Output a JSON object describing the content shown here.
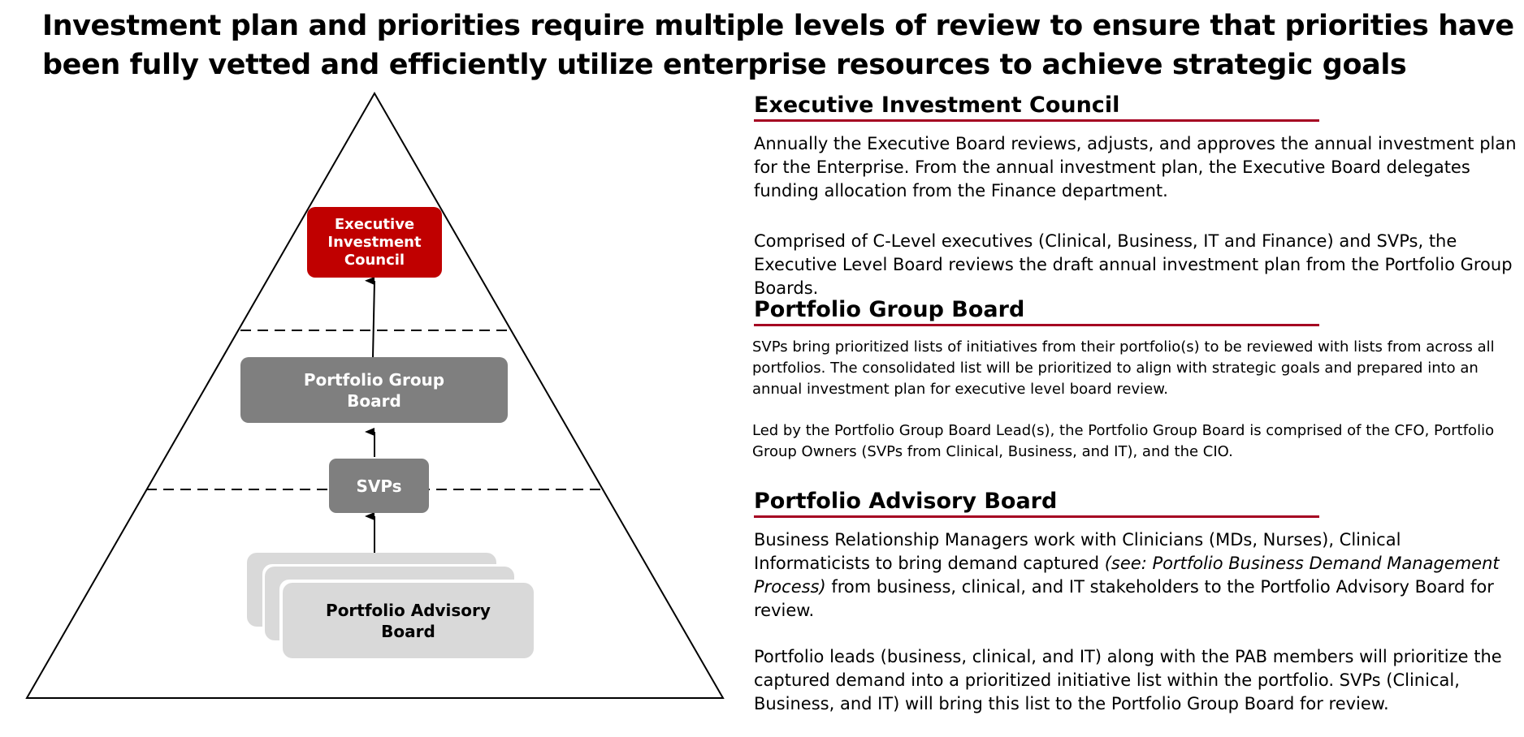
{
  "title": "Investment plan and priorities require multiple levels of review to ensure that priorities have been fully vetted and efficiently utilize enterprise resources to achieve strategic goals",
  "colors": {
    "executive": "#c00000",
    "group": "#7f7f7f",
    "advisory": "#d9d9d9",
    "rule": "#a50021"
  },
  "diagram": {
    "eic_label": "Executive Investment Council",
    "pgb_label": "Portfolio Group Board",
    "svp_label": "SVPs",
    "pab_label": "Portfolio Advisory Board"
  },
  "sections": {
    "eic": {
      "heading": "Executive Investment Council",
      "p1": "Annually the Executive Board reviews, adjusts, and approves the annual investment plan for the Enterprise. From the annual investment plan, the Executive Board delegates funding allocation from the Finance department.",
      "p2": "Comprised of C-Level executives (Clinical, Business, IT and Finance) and SVPs, the Executive Level Board reviews the draft annual investment plan from the Portfolio Group Boards."
    },
    "pgb": {
      "heading": "Portfolio Group Board",
      "p1": "SVPs bring prioritized lists of initiatives from their portfolio(s) to be reviewed with lists from across all portfolios. The consolidated list will be prioritized to align with strategic goals and prepared into an annual investment plan for executive level board review.",
      "p2": "Led by the Portfolio Group Board Lead(s), the Portfolio Group Board is comprised of the CFO, Portfolio Group Owners (SVPs from Clinical, Business, and IT), and the CIO."
    },
    "pab": {
      "heading": "Portfolio Advisory Board",
      "p1_before": "Business Relationship Managers work with Clinicians (MDs, Nurses), Clinical Informaticists to bring demand captured ",
      "p1_italic": "(see: Portfolio Business Demand Management Process)",
      "p1_after": " from business, clinical, and IT stakeholders to the Portfolio Advisory Board for review.",
      "p2": "Portfolio leads (business, clinical, and IT) along with the PAB members will prioritize the captured demand into a prioritized initiative list within the portfolio. SVPs (Clinical, Business, and IT) will bring this list to the Portfolio Group Board for review."
    }
  }
}
